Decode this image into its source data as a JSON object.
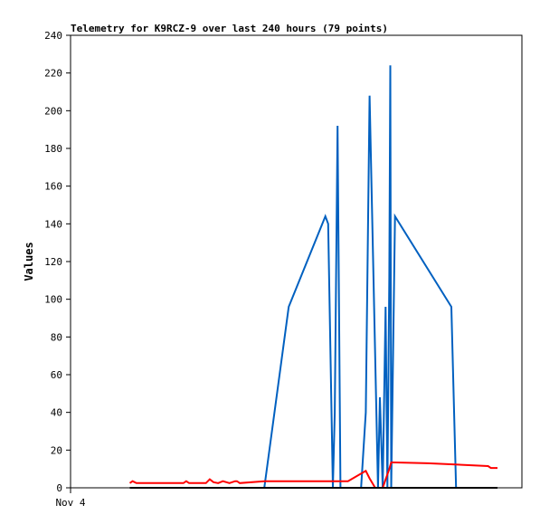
{
  "chart_data": {
    "type": "line",
    "title": "Telemetry for K9RCZ-9 over last 240 hours (79 points)",
    "ylabel": "Values",
    "xlabel": "",
    "x_tick_labels": [
      "Nov 4"
    ],
    "ylim": [
      0,
      240
    ],
    "xlim": [
      0,
      240
    ],
    "y_ticks": [
      0,
      20,
      40,
      60,
      80,
      100,
      120,
      140,
      160,
      180,
      200,
      220,
      240
    ],
    "grid": false,
    "colors": {
      "blue": "#0060c0",
      "red": "#ff0000",
      "black": "#000000"
    },
    "series": [
      {
        "color": "#0060c0",
        "points": [
          [
            103.0,
            0
          ],
          [
            116.0,
            96
          ],
          [
            135.5,
            144
          ],
          [
            137.0,
            140
          ],
          [
            139.5,
            0
          ],
          [
            140.5,
            40
          ],
          [
            142.0,
            192
          ],
          [
            143.5,
            0
          ],
          [
            154.5,
            0
          ],
          [
            157.0,
            40
          ],
          [
            159.0,
            208
          ],
          [
            163.5,
            0
          ],
          [
            164.5,
            48
          ],
          [
            166.0,
            0
          ],
          [
            167.5,
            96
          ],
          [
            168.5,
            0
          ],
          [
            169.5,
            112
          ],
          [
            170.0,
            224
          ],
          [
            170.5,
            0
          ],
          [
            171.5,
            72
          ],
          [
            172.5,
            144
          ],
          [
            202.5,
            96
          ],
          [
            205.0,
            0
          ]
        ]
      },
      {
        "color": "#ff0000",
        "points": [
          [
            31.5,
            2.5
          ],
          [
            33.0,
            3.5
          ],
          [
            35.0,
            2.5
          ],
          [
            60.0,
            2.5
          ],
          [
            61.5,
            3.5
          ],
          [
            63.0,
            2.5
          ],
          [
            72.0,
            2.5
          ],
          [
            74.0,
            4.5
          ],
          [
            76.0,
            3.0
          ],
          [
            78.5,
            2.5
          ],
          [
            81.0,
            3.5
          ],
          [
            84.5,
            2.5
          ],
          [
            87.5,
            3.5
          ],
          [
            88.5,
            3.5
          ],
          [
            90.0,
            2.5
          ],
          [
            103.0,
            3.5
          ],
          [
            147.5,
            3.5
          ],
          [
            157.0,
            9.0
          ],
          [
            159.0,
            5.0
          ],
          [
            162.0,
            0
          ],
          [
            166.0,
            0
          ],
          [
            169.5,
            10
          ],
          [
            170.5,
            13.5
          ],
          [
            190.0,
            13.0
          ],
          [
            202.0,
            12.5
          ],
          [
            222.0,
            11.5
          ],
          [
            223.5,
            10.5
          ],
          [
            227.0,
            10.5
          ]
        ]
      },
      {
        "color": "#000000",
        "points": [
          [
            31.5,
            0
          ],
          [
            227.0,
            0
          ]
        ]
      }
    ]
  }
}
